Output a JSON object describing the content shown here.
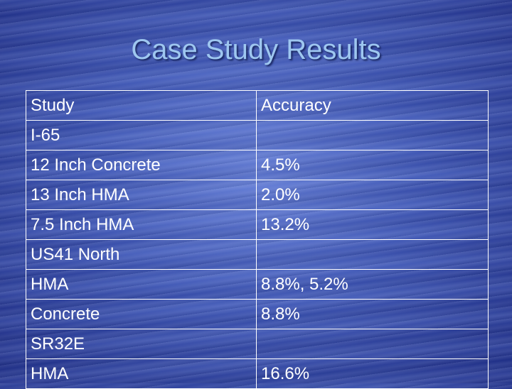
{
  "slide": {
    "title": "Case Study Results"
  },
  "table": {
    "header": {
      "study": "Study",
      "accuracy": "Accuracy"
    },
    "rows": [
      {
        "study": "I-65",
        "accuracy": ""
      },
      {
        "study": "12 Inch Concrete",
        "accuracy": "4.5%"
      },
      {
        "study": "13 Inch HMA",
        "accuracy": "2.0%"
      },
      {
        "study": "7.5 Inch HMA",
        "accuracy": "13.2%"
      },
      {
        "study": "US41 North",
        "accuracy": ""
      },
      {
        "study": "HMA",
        "accuracy": "8.8%, 5.2%"
      },
      {
        "study": "Concrete",
        "accuracy": "8.8%"
      },
      {
        "study": "SR32E",
        "accuracy": ""
      },
      {
        "study": "HMA",
        "accuracy": "16.6%"
      }
    ]
  }
}
